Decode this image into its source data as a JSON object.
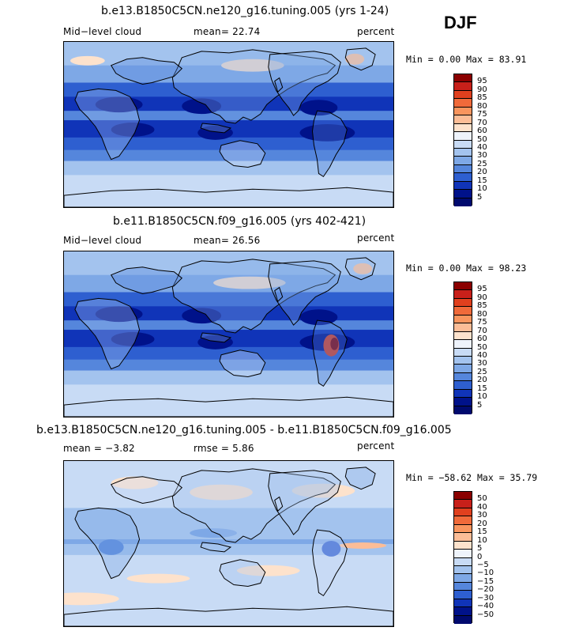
{
  "season": "DJF",
  "panels": [
    {
      "title": "b.e13.B1850C5CN.ne120_g16.tuning.005 (yrs 1-24)",
      "left_label": "Mid−level cloud",
      "center_label": "mean=  22.74",
      "units": "percent",
      "minmax": "Min =   0.00 Max =  83.91",
      "levels": [
        "95",
        "90",
        "85",
        "80",
        "75",
        "70",
        "60",
        "50",
        "40",
        "30",
        "25",
        "20",
        "15",
        "10",
        "5"
      ],
      "map_type": "absolute"
    },
    {
      "title": "b.e11.B1850C5CN.f09_g16.005 (yrs 402-421)",
      "left_label": "Mid−level cloud",
      "center_label": "mean=  26.56",
      "units": "percent",
      "minmax": "Min =   0.00 Max =  98.23",
      "levels": [
        "95",
        "90",
        "85",
        "80",
        "75",
        "70",
        "60",
        "50",
        "40",
        "30",
        "25",
        "20",
        "15",
        "10",
        "5"
      ],
      "map_type": "absolute"
    },
    {
      "title": "b.e13.B1850C5CN.ne120_g16.tuning.005 - b.e11.B1850C5CN.f09_g16.005",
      "left_label": "mean =  −3.82",
      "center_label": "rmse =   5.86",
      "units": "percent",
      "minmax": "Min = −58.62 Max =  35.79",
      "levels": [
        "50",
        "40",
        "30",
        "20",
        "15",
        "10",
        "5",
        "0",
        "−5",
        "−10",
        "−15",
        "−20",
        "−30",
        "−40",
        "−50"
      ],
      "map_type": "difference"
    }
  ],
  "colors": {
    "absolute_scale": [
      "#8b0000",
      "#c8201a",
      "#e0401e",
      "#f06a3a",
      "#f9955e",
      "#fcbd97",
      "#fde2cc",
      "#eef3fb",
      "#c8dbf5",
      "#a3c3ee",
      "#7ea8e6",
      "#5586dc",
      "#2e5fd0",
      "#1034b8",
      "#00128a",
      "#000a6e"
    ],
    "difference_scale": [
      "#8b0000",
      "#c8201a",
      "#e0401e",
      "#f06a3a",
      "#f9955e",
      "#fcbd97",
      "#fde2cc",
      "#eef3fb",
      "#c8dbf5",
      "#a3c3ee",
      "#7ea8e6",
      "#5586dc",
      "#2e5fd0",
      "#1034b8",
      "#00128a",
      "#000a6e"
    ]
  }
}
